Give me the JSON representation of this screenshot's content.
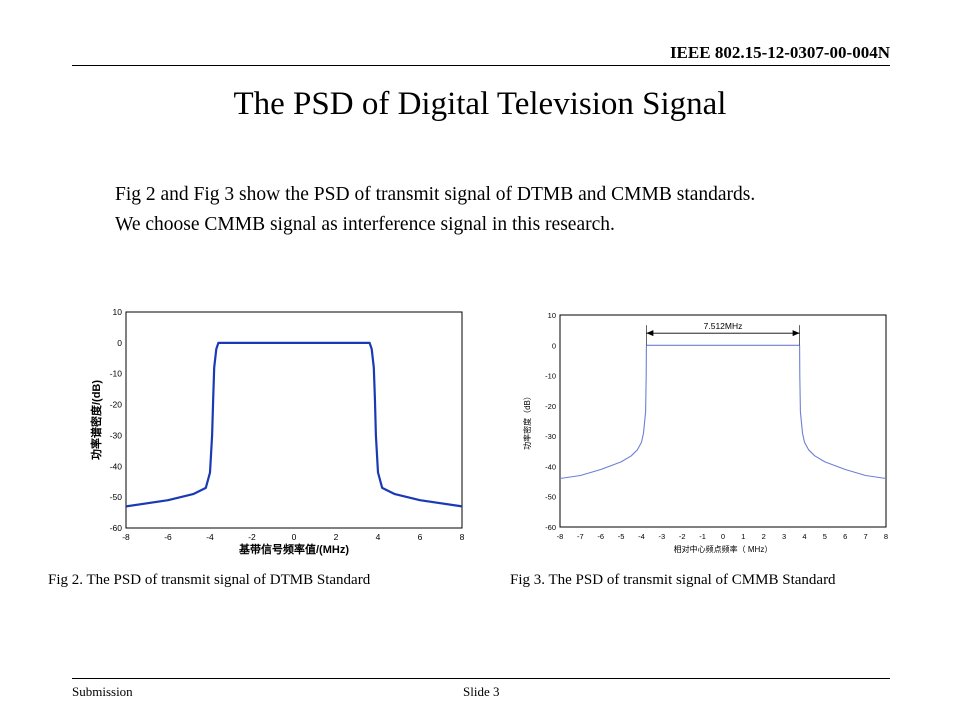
{
  "header": {
    "doc_id": "IEEE 802.15-12-0307-00-004N"
  },
  "title": "The PSD of Digital  Television  Signal",
  "body": {
    "lines": [
      "Fig 2 and Fig 3 show the PSD of transmit signal of DTMB and CMMB standards.",
      "We choose CMMB signal as interference signal in this research."
    ]
  },
  "captions": {
    "fig2": "Fig 2.  The PSD of  transmit signal of DTMB Standard",
    "fig3": "Fig 3.  The PSD of  transmit signal of CMMB Standard"
  },
  "footer": {
    "left": "Submission",
    "center": "Slide 3"
  },
  "chart_data": [
    {
      "type": "line",
      "title": "",
      "xlabel": "基带信号频率值/(MHz)",
      "ylabel": "功率谱密度/(dB)",
      "xlim": [
        -8,
        8
      ],
      "ylim": [
        -60,
        10
      ],
      "xticks": [
        -8,
        -6,
        -4,
        -2,
        0,
        2,
        4,
        6,
        8
      ],
      "yticks": [
        10,
        0,
        -10,
        -20,
        -30,
        -40,
        -50,
        -60
      ],
      "grid": true,
      "line_color": "#1a3ab5",
      "series": [
        {
          "x": [
            -8,
            -6,
            -4.8,
            -4.2,
            -4.0,
            -3.9,
            -3.85,
            -3.8,
            -3.7,
            -3.6,
            -3.5,
            3.5,
            3.6,
            3.7,
            3.8,
            3.85,
            3.9,
            4.0,
            4.2,
            4.8,
            6,
            8
          ],
          "values": [
            -53,
            -51,
            -49,
            -47,
            -42,
            -30,
            -18,
            -8,
            -2,
            0,
            0,
            0,
            0,
            -2,
            -8,
            -18,
            -30,
            -42,
            -47,
            -49,
            -51,
            -53
          ]
        }
      ]
    },
    {
      "type": "line",
      "title": "",
      "xlabel": "相对中心频点频率（ MHz）",
      "ylabel": "功率密度（dB）",
      "xlim": [
        -8,
        8
      ],
      "ylim": [
        -60,
        10
      ],
      "xticks": [
        -8,
        -7,
        -6,
        -5,
        -4,
        -3,
        -2,
        -1,
        0,
        1,
        2,
        3,
        4,
        5,
        6,
        7,
        8
      ],
      "yticks": [
        10,
        0,
        -10,
        -20,
        -30,
        -40,
        -50,
        -60
      ],
      "grid": true,
      "line_color": "#6e7fd6",
      "annotation": {
        "text": "7.512MHz",
        "from_x": -3.76,
        "to_x": 3.76,
        "y": 4
      },
      "series": [
        {
          "x": [
            -8,
            -7,
            -6,
            -5,
            -4.5,
            -4.2,
            -4.0,
            -3.9,
            -3.8,
            -3.77,
            -3.76,
            3.76,
            3.77,
            3.8,
            3.9,
            4.0,
            4.2,
            4.5,
            5,
            6,
            7,
            8
          ],
          "values": [
            -44,
            -43,
            -41,
            -38.5,
            -36.5,
            -34.5,
            -32,
            -29,
            -22,
            -10,
            0,
            0,
            -10,
            -22,
            -29,
            -32,
            -34.5,
            -36.5,
            -38.5,
            -41,
            -43,
            -44
          ]
        }
      ]
    }
  ]
}
